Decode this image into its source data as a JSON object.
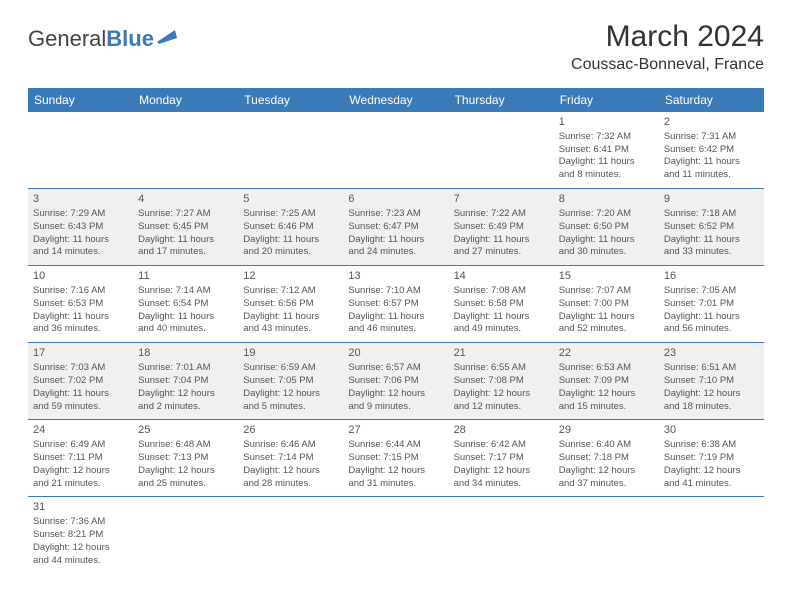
{
  "logo": {
    "text1": "General",
    "text2": "Blue"
  },
  "title": "March 2024",
  "location": "Coussac-Bonneval, France",
  "days_of_week": [
    "Sunday",
    "Monday",
    "Tuesday",
    "Wednesday",
    "Thursday",
    "Friday",
    "Saturday"
  ],
  "colors": {
    "header_bg": "#3a7ab8",
    "header_text": "#ffffff",
    "row_alt_bg": "#f0f0f0",
    "border": "#3a7ab8",
    "text": "#555"
  },
  "weeks": [
    [
      null,
      null,
      null,
      null,
      null,
      {
        "day": "1",
        "sunrise": "Sunrise: 7:32 AM",
        "sunset": "Sunset: 6:41 PM",
        "daylight1": "Daylight: 11 hours",
        "daylight2": "and 8 minutes."
      },
      {
        "day": "2",
        "sunrise": "Sunrise: 7:31 AM",
        "sunset": "Sunset: 6:42 PM",
        "daylight1": "Daylight: 11 hours",
        "daylight2": "and 11 minutes."
      }
    ],
    [
      {
        "day": "3",
        "sunrise": "Sunrise: 7:29 AM",
        "sunset": "Sunset: 6:43 PM",
        "daylight1": "Daylight: 11 hours",
        "daylight2": "and 14 minutes."
      },
      {
        "day": "4",
        "sunrise": "Sunrise: 7:27 AM",
        "sunset": "Sunset: 6:45 PM",
        "daylight1": "Daylight: 11 hours",
        "daylight2": "and 17 minutes."
      },
      {
        "day": "5",
        "sunrise": "Sunrise: 7:25 AM",
        "sunset": "Sunset: 6:46 PM",
        "daylight1": "Daylight: 11 hours",
        "daylight2": "and 20 minutes."
      },
      {
        "day": "6",
        "sunrise": "Sunrise: 7:23 AM",
        "sunset": "Sunset: 6:47 PM",
        "daylight1": "Daylight: 11 hours",
        "daylight2": "and 24 minutes."
      },
      {
        "day": "7",
        "sunrise": "Sunrise: 7:22 AM",
        "sunset": "Sunset: 6:49 PM",
        "daylight1": "Daylight: 11 hours",
        "daylight2": "and 27 minutes."
      },
      {
        "day": "8",
        "sunrise": "Sunrise: 7:20 AM",
        "sunset": "Sunset: 6:50 PM",
        "daylight1": "Daylight: 11 hours",
        "daylight2": "and 30 minutes."
      },
      {
        "day": "9",
        "sunrise": "Sunrise: 7:18 AM",
        "sunset": "Sunset: 6:52 PM",
        "daylight1": "Daylight: 11 hours",
        "daylight2": "and 33 minutes."
      }
    ],
    [
      {
        "day": "10",
        "sunrise": "Sunrise: 7:16 AM",
        "sunset": "Sunset: 6:53 PM",
        "daylight1": "Daylight: 11 hours",
        "daylight2": "and 36 minutes."
      },
      {
        "day": "11",
        "sunrise": "Sunrise: 7:14 AM",
        "sunset": "Sunset: 6:54 PM",
        "daylight1": "Daylight: 11 hours",
        "daylight2": "and 40 minutes."
      },
      {
        "day": "12",
        "sunrise": "Sunrise: 7:12 AM",
        "sunset": "Sunset: 6:56 PM",
        "daylight1": "Daylight: 11 hours",
        "daylight2": "and 43 minutes."
      },
      {
        "day": "13",
        "sunrise": "Sunrise: 7:10 AM",
        "sunset": "Sunset: 6:57 PM",
        "daylight1": "Daylight: 11 hours",
        "daylight2": "and 46 minutes."
      },
      {
        "day": "14",
        "sunrise": "Sunrise: 7:08 AM",
        "sunset": "Sunset: 6:58 PM",
        "daylight1": "Daylight: 11 hours",
        "daylight2": "and 49 minutes."
      },
      {
        "day": "15",
        "sunrise": "Sunrise: 7:07 AM",
        "sunset": "Sunset: 7:00 PM",
        "daylight1": "Daylight: 11 hours",
        "daylight2": "and 52 minutes."
      },
      {
        "day": "16",
        "sunrise": "Sunrise: 7:05 AM",
        "sunset": "Sunset: 7:01 PM",
        "daylight1": "Daylight: 11 hours",
        "daylight2": "and 56 minutes."
      }
    ],
    [
      {
        "day": "17",
        "sunrise": "Sunrise: 7:03 AM",
        "sunset": "Sunset: 7:02 PM",
        "daylight1": "Daylight: 11 hours",
        "daylight2": "and 59 minutes."
      },
      {
        "day": "18",
        "sunrise": "Sunrise: 7:01 AM",
        "sunset": "Sunset: 7:04 PM",
        "daylight1": "Daylight: 12 hours",
        "daylight2": "and 2 minutes."
      },
      {
        "day": "19",
        "sunrise": "Sunrise: 6:59 AM",
        "sunset": "Sunset: 7:05 PM",
        "daylight1": "Daylight: 12 hours",
        "daylight2": "and 5 minutes."
      },
      {
        "day": "20",
        "sunrise": "Sunrise: 6:57 AM",
        "sunset": "Sunset: 7:06 PM",
        "daylight1": "Daylight: 12 hours",
        "daylight2": "and 9 minutes."
      },
      {
        "day": "21",
        "sunrise": "Sunrise: 6:55 AM",
        "sunset": "Sunset: 7:08 PM",
        "daylight1": "Daylight: 12 hours",
        "daylight2": "and 12 minutes."
      },
      {
        "day": "22",
        "sunrise": "Sunrise: 6:53 AM",
        "sunset": "Sunset: 7:09 PM",
        "daylight1": "Daylight: 12 hours",
        "daylight2": "and 15 minutes."
      },
      {
        "day": "23",
        "sunrise": "Sunrise: 6:51 AM",
        "sunset": "Sunset: 7:10 PM",
        "daylight1": "Daylight: 12 hours",
        "daylight2": "and 18 minutes."
      }
    ],
    [
      {
        "day": "24",
        "sunrise": "Sunrise: 6:49 AM",
        "sunset": "Sunset: 7:11 PM",
        "daylight1": "Daylight: 12 hours",
        "daylight2": "and 21 minutes."
      },
      {
        "day": "25",
        "sunrise": "Sunrise: 6:48 AM",
        "sunset": "Sunset: 7:13 PM",
        "daylight1": "Daylight: 12 hours",
        "daylight2": "and 25 minutes."
      },
      {
        "day": "26",
        "sunrise": "Sunrise: 6:46 AM",
        "sunset": "Sunset: 7:14 PM",
        "daylight1": "Daylight: 12 hours",
        "daylight2": "and 28 minutes."
      },
      {
        "day": "27",
        "sunrise": "Sunrise: 6:44 AM",
        "sunset": "Sunset: 7:15 PM",
        "daylight1": "Daylight: 12 hours",
        "daylight2": "and 31 minutes."
      },
      {
        "day": "28",
        "sunrise": "Sunrise: 6:42 AM",
        "sunset": "Sunset: 7:17 PM",
        "daylight1": "Daylight: 12 hours",
        "daylight2": "and 34 minutes."
      },
      {
        "day": "29",
        "sunrise": "Sunrise: 6:40 AM",
        "sunset": "Sunset: 7:18 PM",
        "daylight1": "Daylight: 12 hours",
        "daylight2": "and 37 minutes."
      },
      {
        "day": "30",
        "sunrise": "Sunrise: 6:38 AM",
        "sunset": "Sunset: 7:19 PM",
        "daylight1": "Daylight: 12 hours",
        "daylight2": "and 41 minutes."
      }
    ],
    [
      {
        "day": "31",
        "sunrise": "Sunrise: 7:36 AM",
        "sunset": "Sunset: 8:21 PM",
        "daylight1": "Daylight: 12 hours",
        "daylight2": "and 44 minutes."
      },
      null,
      null,
      null,
      null,
      null,
      null
    ]
  ]
}
